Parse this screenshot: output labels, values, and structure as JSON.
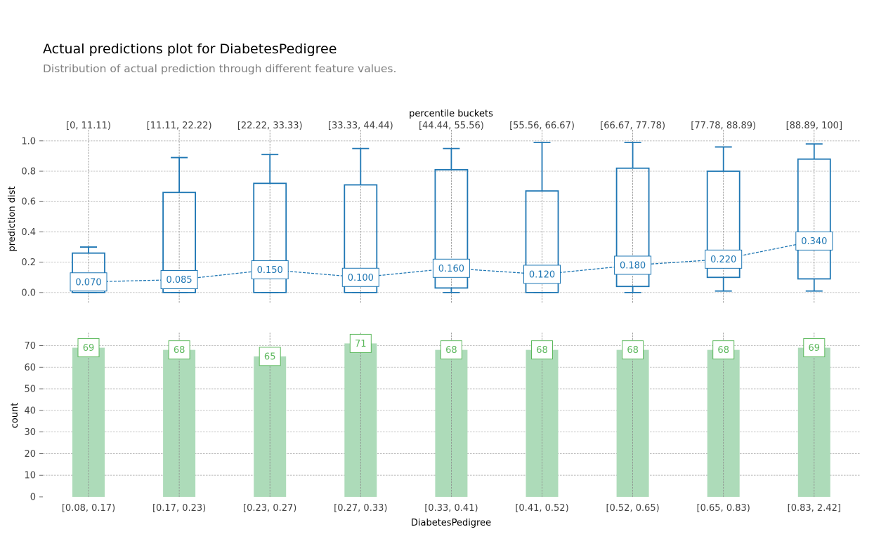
{
  "header": {
    "title": "Actual predictions plot for DiabetesPedigree",
    "subtitle": "Distribution of actual prediction through different feature values."
  },
  "colors": {
    "box": "#1f77b4",
    "bar": "#addbb9",
    "bar_label": "#5cb85c"
  },
  "chart_data": [
    {
      "type": "box",
      "title": "",
      "top_axis_title": "percentile buckets",
      "top_categories": [
        "[0, 11.11)",
        "[11.11, 22.22)",
        "[22.22, 33.33)",
        "[33.33, 44.44)",
        "[44.44, 55.56)",
        "[55.56, 66.67)",
        "[66.67, 77.78)",
        "[77.78, 88.89)",
        "[88.89, 100]"
      ],
      "ylabel": "prediction dist",
      "ylim": [
        -0.07,
        1.05
      ],
      "yticks": [
        "0.0",
        "0.2",
        "0.4",
        "0.6",
        "0.8",
        "1.0"
      ],
      "boxes": [
        {
          "low": 0.0,
          "q1": 0.0,
          "median": 0.07,
          "q3": 0.26,
          "high": 0.3
        },
        {
          "low": 0.0,
          "q1": 0.0,
          "median": 0.085,
          "q3": 0.66,
          "high": 0.89
        },
        {
          "low": 0.0,
          "q1": 0.0,
          "median": 0.15,
          "q3": 0.72,
          "high": 0.91
        },
        {
          "low": 0.0,
          "q1": 0.0,
          "median": 0.1,
          "q3": 0.71,
          "high": 0.95
        },
        {
          "low": 0.0,
          "q1": 0.03,
          "median": 0.16,
          "q3": 0.81,
          "high": 0.95
        },
        {
          "low": 0.0,
          "q1": 0.0,
          "median": 0.12,
          "q3": 0.67,
          "high": 0.99
        },
        {
          "low": 0.0,
          "q1": 0.04,
          "median": 0.18,
          "q3": 0.82,
          "high": 0.99
        },
        {
          "low": 0.01,
          "q1": 0.1,
          "median": 0.22,
          "q3": 0.8,
          "high": 0.96
        },
        {
          "low": 0.01,
          "q1": 0.09,
          "median": 0.34,
          "q3": 0.88,
          "high": 0.98
        }
      ],
      "median_labels": [
        "0.070",
        "0.085",
        "0.150",
        "0.100",
        "0.160",
        "0.120",
        "0.180",
        "0.220",
        "0.340"
      ],
      "grid": true
    },
    {
      "type": "bar",
      "categories": [
        "[0.08, 0.17)",
        "[0.17, 0.23)",
        "[0.23, 0.27)",
        "[0.27, 0.33)",
        "[0.33, 0.41)",
        "[0.41, 0.52)",
        "[0.52, 0.65)",
        "[0.65, 0.83)",
        "[0.83, 2.42]"
      ],
      "values": [
        69,
        68,
        65,
        71,
        68,
        68,
        68,
        68,
        69
      ],
      "value_labels": [
        "69",
        "68",
        "65",
        "71",
        "68",
        "68",
        "68",
        "68",
        "69"
      ],
      "xlabel": "DiabetesPedigree",
      "ylabel": "count",
      "ylim": [
        0,
        76
      ],
      "yticks": [
        "0",
        "10",
        "20",
        "30",
        "40",
        "50",
        "60",
        "70"
      ],
      "grid": true
    }
  ]
}
